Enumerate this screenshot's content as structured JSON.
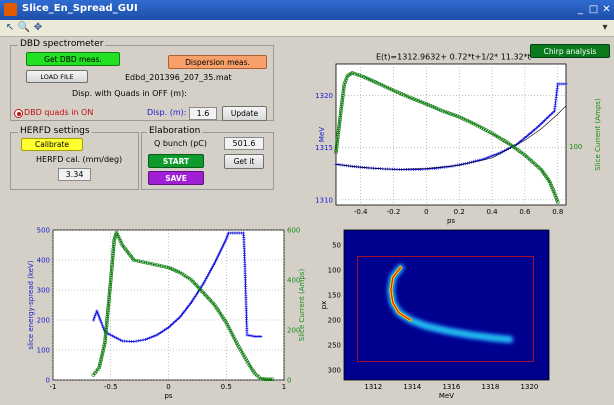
{
  "window": {
    "title": "Slice_En_Spread_GUI"
  },
  "toolbar": {
    "icons": [
      "arrow-icon",
      "zoom-icon",
      "pan-icon"
    ]
  },
  "dbd": {
    "panel_label": "DBD spectrometer",
    "get_button": "Get DBD meas.",
    "dispersion_button": "Dispersion meas.",
    "load_button": "LOAD FILE",
    "filename": "Edbd_201396_207_35.mat",
    "disp_quads_off_label": "Disp. with Quads in OFF (m):",
    "quads_on_radio": "DBD quads in ON",
    "disp_label": "Disp. (m):",
    "disp_value": "1.6",
    "update_button": "Update"
  },
  "herfd": {
    "panel_label": "HERFD settings",
    "calibrate_button": "Calibrate",
    "cal_label": "HERFD cal. (mm/deg)",
    "cal_value": "3.34"
  },
  "elaboration": {
    "panel_label": "Elaboration",
    "q_bunch_label": "Q bunch (pC)",
    "q_bunch_value": "501.6",
    "get_it_button": "Get it",
    "start_button": "START",
    "save_button": "SAVE"
  },
  "chirp": {
    "formula": "E(t)=1312.9632+ 0.72*t+1/2* 11.32*t",
    "formula_sup": "2",
    "button": "Chirp analysis"
  },
  "colors": {
    "blue_series": "#1010e0",
    "green_series": "#0a7a0a",
    "left_axis": "#1a1acc",
    "right_axis": "#1a8a1a"
  },
  "chart_data": [
    {
      "type": "line",
      "name": "energy-vs-time",
      "xlabel": "ps",
      "ylabel": "MeV",
      "ylabel_right": "Slice Current (Amps)",
      "xlim": [
        -0.55,
        0.85
      ],
      "ylim": [
        1309.5,
        1323
      ],
      "ylim_right": [
        0,
        240
      ],
      "xticks": [
        -0.4,
        -0.2,
        0,
        0.2,
        0.4,
        0.6,
        0.8
      ],
      "yticks": [
        1310,
        1315,
        1320
      ],
      "yticks_right": [
        100
      ],
      "series": [
        {
          "axis": "left",
          "color": "blue",
          "x": [
            -0.55,
            -0.45,
            -0.35,
            -0.25,
            -0.15,
            -0.05,
            0.05,
            0.15,
            0.25,
            0.35,
            0.45,
            0.55,
            0.62,
            0.68,
            0.72,
            0.76,
            0.78,
            0.8,
            0.85
          ],
          "y": [
            1313.4,
            1313.2,
            1313.05,
            1312.95,
            1312.9,
            1312.9,
            1313.0,
            1313.2,
            1313.5,
            1313.9,
            1314.5,
            1315.3,
            1316.2,
            1317.0,
            1317.6,
            1318.2,
            1318.5,
            1321.1,
            1321.1
          ]
        },
        {
          "axis": "left",
          "color": "dark",
          "x": [
            -0.55,
            -0.4,
            -0.2,
            0,
            0.2,
            0.4,
            0.6,
            0.7,
            0.8,
            0.85
          ],
          "y": [
            1313.4,
            1313.1,
            1312.9,
            1313.0,
            1313.3,
            1314.0,
            1315.7,
            1316.8,
            1318.2,
            1319.0
          ]
        },
        {
          "axis": "right",
          "color": "green",
          "x": [
            -0.55,
            -0.52,
            -0.5,
            -0.48,
            -0.45,
            -0.42,
            -0.38,
            -0.3,
            -0.2,
            -0.1,
            0,
            0.1,
            0.2,
            0.3,
            0.4,
            0.5,
            0.6,
            0.7,
            0.75,
            0.78,
            0.8
          ],
          "y": [
            90,
            160,
            205,
            220,
            225,
            222,
            218,
            208,
            195,
            183,
            172,
            160,
            150,
            137,
            122,
            105,
            85,
            60,
            40,
            20,
            5
          ]
        }
      ]
    },
    {
      "type": "line",
      "name": "energy-spread-vs-time",
      "xlabel": "ps",
      "ylabel": "slice energy-spread (keV)",
      "ylabel_right": "Slice Current (Amps)",
      "xlim": [
        -1,
        1
      ],
      "ylim": [
        0,
        500
      ],
      "ylim_right": [
        0,
        600
      ],
      "xticks": [
        -1,
        -0.5,
        0,
        0.5,
        1
      ],
      "yticks": [
        0,
        100,
        200,
        300,
        400,
        500
      ],
      "yticks_right": [
        0,
        200,
        400,
        600
      ],
      "series": [
        {
          "axis": "left",
          "color": "blue",
          "x": [
            -0.65,
            -0.62,
            -0.58,
            -0.55,
            -0.5,
            -0.45,
            -0.4,
            -0.3,
            -0.2,
            -0.1,
            0,
            0.1,
            0.2,
            0.3,
            0.4,
            0.45,
            0.5,
            0.52,
            0.65,
            0.66,
            0.68,
            0.75,
            0.8
          ],
          "y": [
            200,
            230,
            190,
            160,
            150,
            140,
            130,
            128,
            135,
            150,
            175,
            210,
            260,
            320,
            390,
            430,
            470,
            490,
            490,
            400,
            150,
            145,
            145
          ]
        },
        {
          "axis": "right",
          "color": "green",
          "x": [
            -0.65,
            -0.6,
            -0.55,
            -0.5,
            -0.47,
            -0.45,
            -0.4,
            -0.3,
            -0.2,
            -0.1,
            0,
            0.1,
            0.2,
            0.3,
            0.4,
            0.5,
            0.6,
            0.7,
            0.75,
            0.8,
            0.85,
            0.9
          ],
          "y": [
            20,
            50,
            150,
            400,
            560,
            590,
            540,
            480,
            470,
            460,
            450,
            430,
            400,
            350,
            300,
            230,
            140,
            60,
            25,
            5,
            3,
            3
          ]
        }
      ]
    },
    {
      "type": "heatmap",
      "name": "energy-image",
      "xlabel": "MeV",
      "ylabel": "px",
      "xlim": [
        1310.5,
        1321
      ],
      "ylim": [
        320,
        20
      ],
      "xticks": [
        1312,
        1314,
        1316,
        1318,
        1320
      ],
      "yticks": [
        50,
        100,
        150,
        200,
        250,
        300
      ],
      "roi": {
        "x": [
          1311.2,
          1320.2
        ],
        "y": [
          73,
          283
        ]
      },
      "trace": {
        "x": [
          1313.4,
          1313.0,
          1312.9,
          1313.0,
          1313.3,
          1313.9,
          1314.7,
          1315.8,
          1317.0,
          1318.2,
          1319.0
        ],
        "y": [
          95,
          115,
          140,
          165,
          185,
          200,
          212,
          222,
          230,
          236,
          239
        ]
      }
    }
  ]
}
